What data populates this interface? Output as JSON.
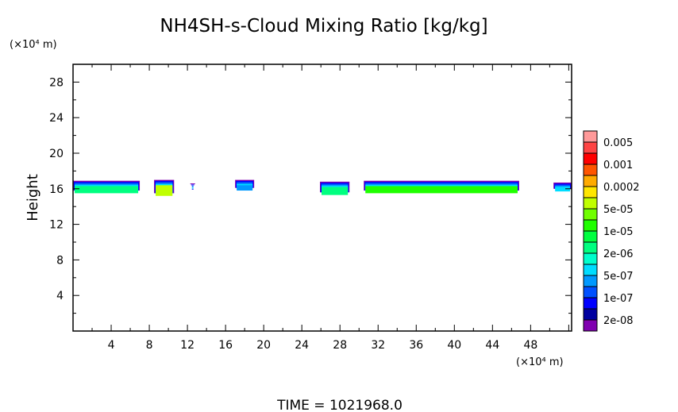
{
  "chart_data": {
    "type": "heatmap",
    "title": "NH4SH-s-Cloud Mixing Ratio [kg/kg]",
    "xlabel": "",
    "ylabel": "Height",
    "x_unit": "(×10⁴ m)",
    "y_unit": "(×10⁴ m)",
    "xlim": [
      0,
      52.3
    ],
    "ylim": [
      0,
      30
    ],
    "x_ticks": [
      4,
      8,
      12,
      16,
      20,
      24,
      28,
      32,
      36,
      40,
      44,
      48
    ],
    "y_ticks": [
      4,
      8,
      12,
      16,
      20,
      24,
      28
    ],
    "footer": "TIME = 1021968.0",
    "colorbar": {
      "colors": [
        "#ff9999",
        "#ff4444",
        "#ff0000",
        "#ff5500",
        "#ffaa00",
        "#ffe600",
        "#c0ff00",
        "#70ff00",
        "#20ff00",
        "#00ff40",
        "#00ff80",
        "#00ffcc",
        "#00ddff",
        "#0099ff",
        "#0050ff",
        "#0000ff",
        "#0000a0",
        "#8000b0"
      ],
      "labels": [
        "0.005",
        "0.001",
        "0.0002",
        "5e-05",
        "1e-05",
        "2e-06",
        "5e-07",
        "1e-07",
        "2e-08"
      ]
    },
    "cloud_segments": [
      {
        "x": [
          0,
          7
        ],
        "top": 16.9,
        "bottom": 15.5,
        "peak_color": "#00ff80"
      },
      {
        "x": [
          8.5,
          10.6
        ],
        "top": 17.0,
        "bottom": 15.2,
        "peak_color": "#c0ff00"
      },
      {
        "x": [
          12.3,
          12.8
        ],
        "top": 16.6,
        "bottom": 16.3,
        "peak_color": "#0000ff"
      },
      {
        "x": [
          17,
          19
        ],
        "top": 17.0,
        "bottom": 15.8,
        "peak_color": "#0099ff"
      },
      {
        "x": [
          25.9,
          29
        ],
        "top": 16.8,
        "bottom": 15.3,
        "peak_color": "#00ff80"
      },
      {
        "x": [
          30.5,
          46.8
        ],
        "top": 16.9,
        "bottom": 15.5,
        "peak_color": "#20ff00"
      },
      {
        "x": [
          50.4,
          52.3
        ],
        "top": 16.7,
        "bottom": 15.7,
        "peak_color": "#00ddff"
      }
    ]
  }
}
